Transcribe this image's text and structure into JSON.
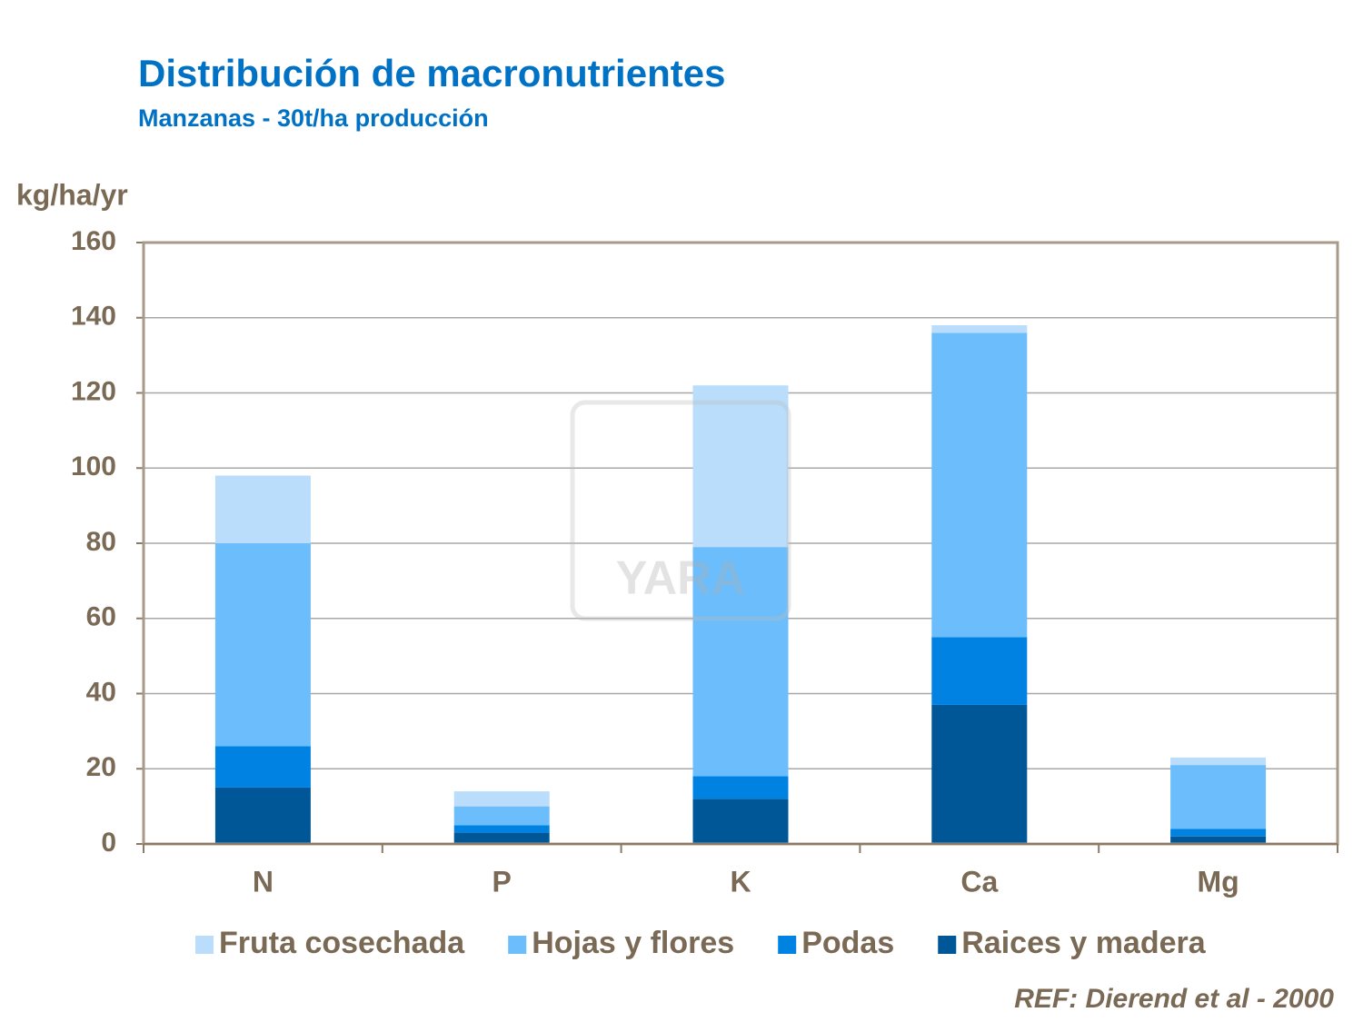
{
  "chart_data": {
    "type": "stacked-bar",
    "title": "Distribución de macronutrientes",
    "subtitle": "Manzanas - 30t/ha producción",
    "y_label": "kg/ha/yr",
    "source": "REF: Dierend et al - 2000",
    "watermark": "YARA",
    "categories": [
      "N",
      "P",
      "K",
      "Ca",
      "Mg"
    ],
    "series": [
      {
        "name": "Fruta cosechada",
        "color": "#b9ddfb",
        "values": [
          18,
          4,
          43,
          2,
          2
        ]
      },
      {
        "name": "Hojas y flores",
        "color": "#6bbdfb",
        "values": [
          54,
          5,
          61,
          81,
          17
        ]
      },
      {
        "name": "Podas",
        "color": "#0082e3",
        "values": [
          11,
          2,
          6,
          18,
          2
        ]
      },
      {
        "name": "Raices y madera",
        "color": "#005797",
        "values": [
          15,
          3,
          12,
          37,
          2
        ]
      }
    ],
    "ylim": [
      0,
      160
    ],
    "yticks": [
      0,
      20,
      40,
      60,
      80,
      100,
      120,
      140,
      160
    ],
    "grid": true
  }
}
